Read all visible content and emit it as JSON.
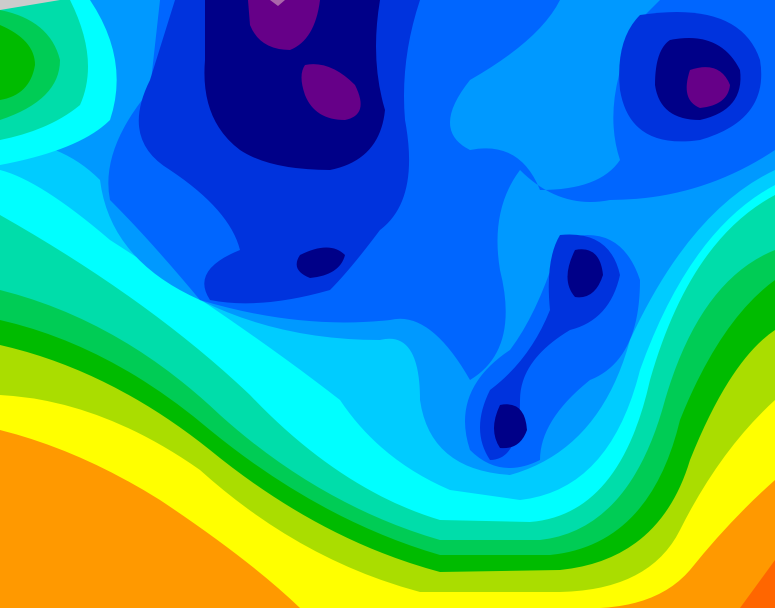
{
  "map": {
    "type": "filled-contour",
    "palette": {
      "orange": "#ff9900",
      "dark_orange": "#ff6600",
      "yellow": "#ffff00",
      "yellow_green": "#aadd00",
      "green": "#00bb00",
      "medium_green": "#00cc55",
      "aquamarine": "#00ddaa",
      "cyan": "#00ffff",
      "sky_blue": "#00ccff",
      "light_blue": "#0099ff",
      "blue": "#0066ff",
      "royal_blue": "#0033dd",
      "navy": "#000088",
      "purple": "#660088",
      "light_purple": "#aa66aa",
      "gray": "#cccccc"
    }
  }
}
